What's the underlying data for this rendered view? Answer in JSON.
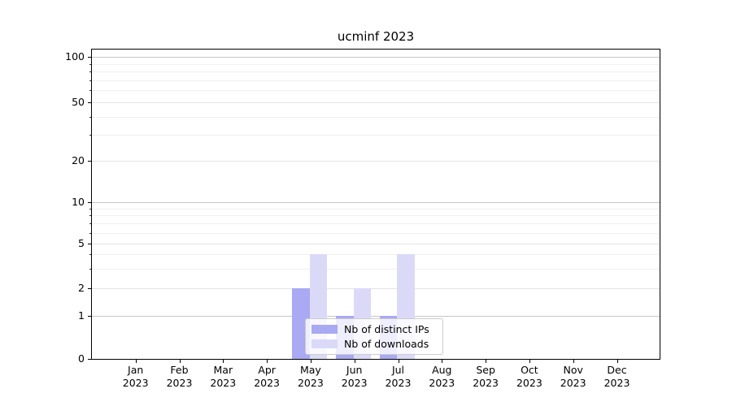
{
  "chart_data": {
    "type": "bar",
    "title": "ucminf 2023",
    "xlabel": "",
    "ylabel": "",
    "categories": [
      "Jan",
      "Feb",
      "Mar",
      "Apr",
      "May",
      "Jun",
      "Jul",
      "Aug",
      "Sep",
      "Oct",
      "Nov",
      "Dec"
    ],
    "category_year": "2023",
    "series": [
      {
        "name": "Nb of distinct IPs",
        "color": "#a9a9f4",
        "values": [
          0,
          0,
          0,
          0,
          2,
          1,
          1,
          0,
          0,
          0,
          0,
          0
        ]
      },
      {
        "name": "Nb of downloads",
        "color": "#dadaf8",
        "values": [
          0,
          0,
          0,
          0,
          4,
          2,
          4,
          0,
          0,
          0,
          0,
          0
        ]
      }
    ],
    "y_axis": {
      "scale": "symlog",
      "tick_labels": [
        "0",
        "1",
        "2",
        "5",
        "10",
        "20",
        "50",
        "100"
      ],
      "tick_values": [
        0,
        1,
        2,
        5,
        10,
        20,
        50,
        100
      ],
      "decade_ticks": [
        1,
        10,
        100
      ],
      "minor_ticks": [
        3,
        4,
        6,
        7,
        8,
        9,
        30,
        40,
        60,
        70,
        80,
        90
      ],
      "ylim": [
        0,
        110
      ]
    },
    "grid": true,
    "legend": {
      "position": "lower center",
      "entries": [
        "Nb of distinct IPs",
        "Nb of downloads"
      ]
    }
  }
}
